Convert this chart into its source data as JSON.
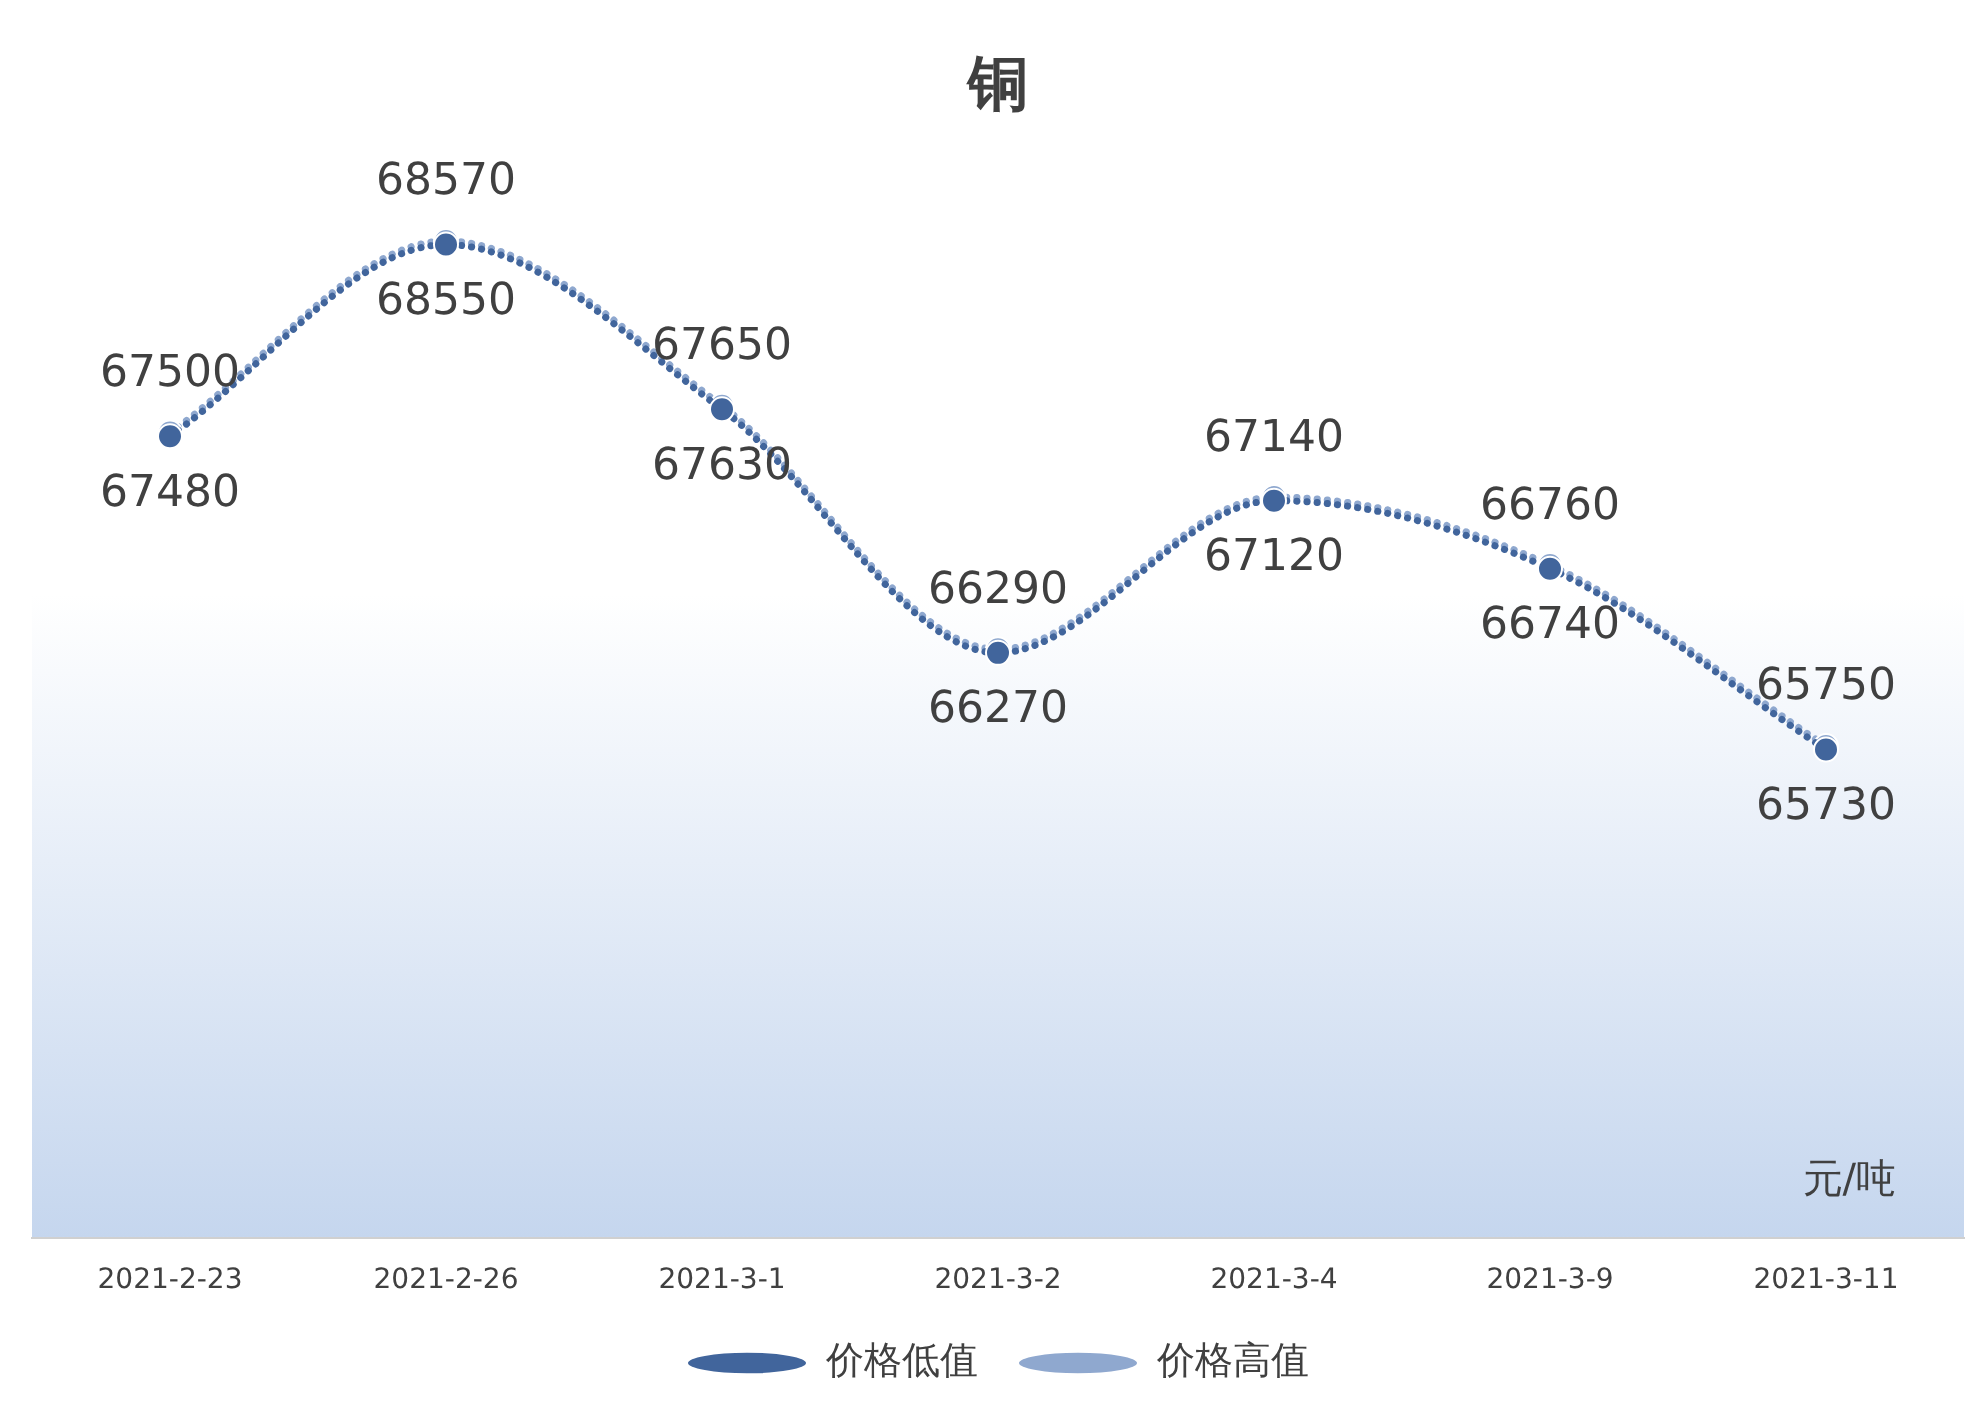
{
  "chart_data": {
    "type": "line",
    "title": "铜",
    "categories": [
      "2021-2-23",
      "2021-2-26",
      "2021-3-1",
      "2021-3-2",
      "2021-3-4",
      "2021-3-9",
      "2021-3-11"
    ],
    "series": [
      {
        "name": "价格低值",
        "color": "#41659c",
        "values": [
          67480,
          68550,
          67630,
          66270,
          67120,
          66740,
          65730
        ]
      },
      {
        "name": "价格高值",
        "color": "#8fa8cf",
        "values": [
          67500,
          68570,
          67650,
          66290,
          67140,
          66760,
          65750
        ]
      }
    ],
    "data_labels": true,
    "legend": "bottom",
    "marker": "circle",
    "line_style": "dotted",
    "grid": false,
    "annotations": [
      "元/吨"
    ]
  }
}
